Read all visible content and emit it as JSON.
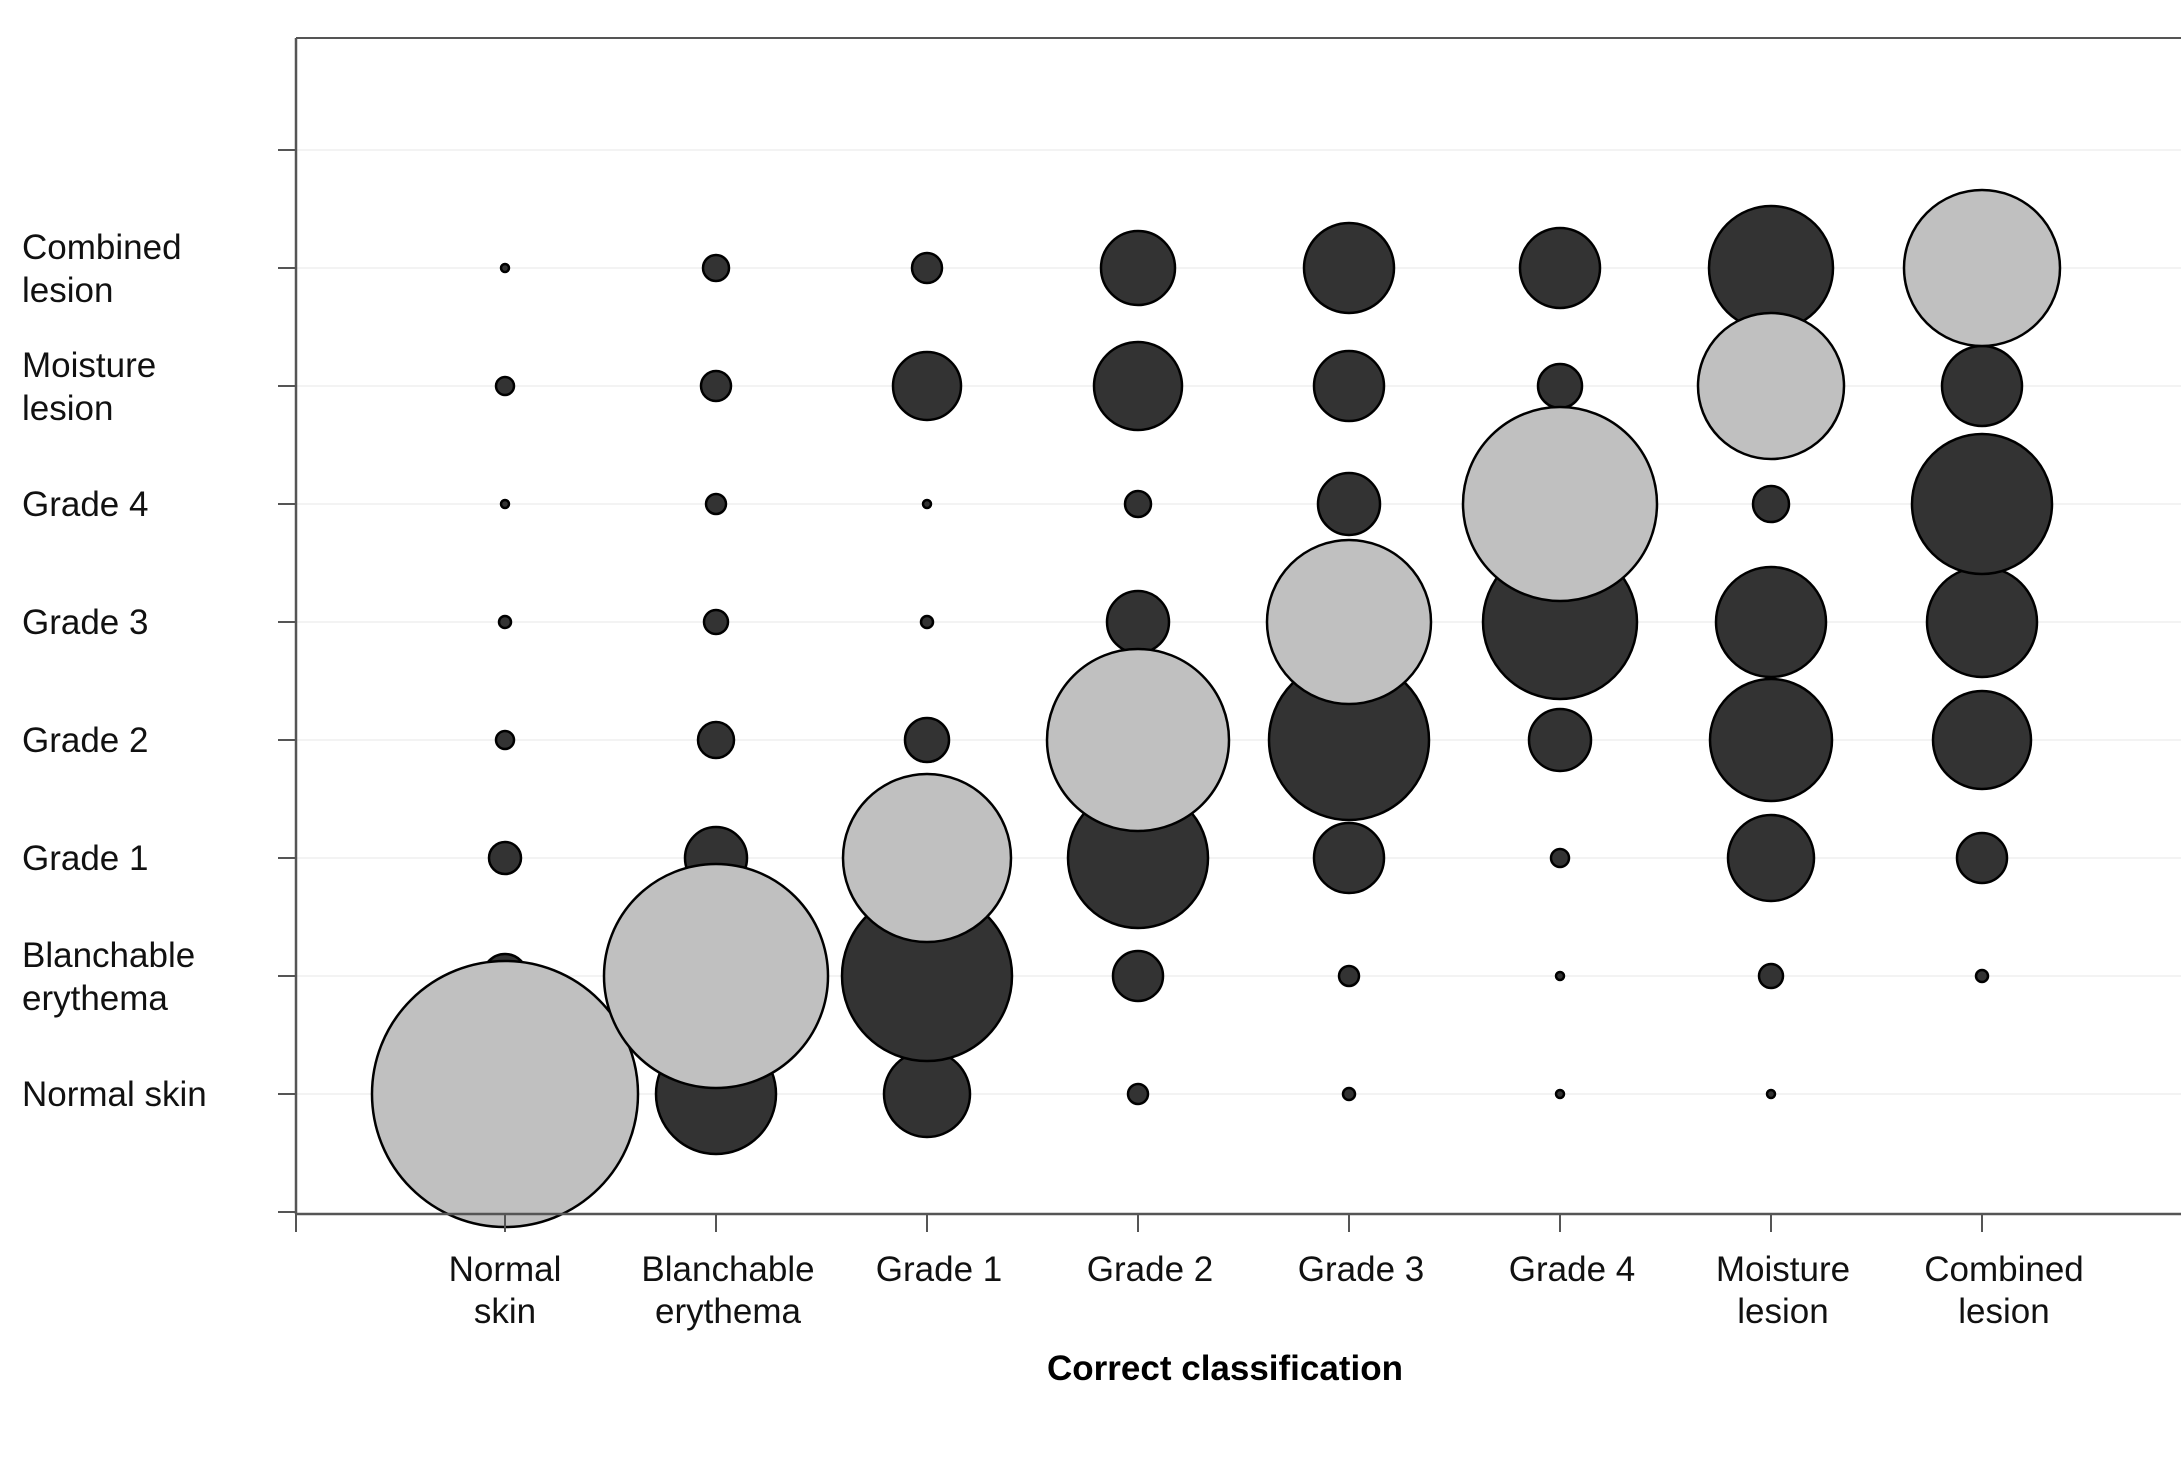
{
  "chart_data": {
    "type": "scatter",
    "subtype": "bubble",
    "xlabel": "Correct classification",
    "ylabel": "",
    "categories": [
      [
        "Normal",
        "skin"
      ],
      [
        "Blanchable",
        "erythema"
      ],
      [
        "Grade 1"
      ],
      [
        "Grade 2"
      ],
      [
        "Grade 3"
      ],
      [
        "Grade 4"
      ],
      [
        "Moisture",
        "lesion"
      ],
      [
        "Combined",
        "lesion"
      ]
    ],
    "y_categories": [
      [
        "Normal skin"
      ],
      [
        "Blanchable",
        "erythema"
      ],
      [
        "Grade 1"
      ],
      [
        "Grade 2"
      ],
      [
        "Grade 3"
      ],
      [
        "Grade 4"
      ],
      [
        "Moisture",
        "lesion"
      ],
      [
        "Combined",
        "lesion"
      ]
    ],
    "grid": true,
    "legend": "none",
    "colors": {
      "correct": "#c0c0c0",
      "incorrect": "#333333",
      "stroke": "#000000"
    },
    "bubbles": [
      {
        "x": 0,
        "y": 0,
        "r": 133,
        "correct": true
      },
      {
        "x": 0,
        "y": 1,
        "r": 22
      },
      {
        "x": 0,
        "y": 2,
        "r": 16
      },
      {
        "x": 0,
        "y": 3,
        "r": 9
      },
      {
        "x": 0,
        "y": 4,
        "r": 6
      },
      {
        "x": 0,
        "y": 5,
        "r": 4
      },
      {
        "x": 0,
        "y": 6,
        "r": 9
      },
      {
        "x": 0,
        "y": 7,
        "r": 4
      },
      {
        "x": 1,
        "y": 0,
        "r": 60
      },
      {
        "x": 1,
        "y": 1,
        "r": 112,
        "correct": true
      },
      {
        "x": 1,
        "y": 2,
        "r": 31
      },
      {
        "x": 1,
        "y": 3,
        "r": 18
      },
      {
        "x": 1,
        "y": 4,
        "r": 12
      },
      {
        "x": 1,
        "y": 5,
        "r": 10
      },
      {
        "x": 1,
        "y": 6,
        "r": 15
      },
      {
        "x": 1,
        "y": 7,
        "r": 13
      },
      {
        "x": 2,
        "y": 0,
        "r": 43
      },
      {
        "x": 2,
        "y": 1,
        "r": 85
      },
      {
        "x": 2,
        "y": 2,
        "r": 84,
        "correct": true
      },
      {
        "x": 2,
        "y": 3,
        "r": 22
      },
      {
        "x": 2,
        "y": 4,
        "r": 6
      },
      {
        "x": 2,
        "y": 5,
        "r": 4
      },
      {
        "x": 2,
        "y": 6,
        "r": 34
      },
      {
        "x": 2,
        "y": 7,
        "r": 15
      },
      {
        "x": 3,
        "y": 0,
        "r": 10
      },
      {
        "x": 3,
        "y": 1,
        "r": 25
      },
      {
        "x": 3,
        "y": 2,
        "r": 70
      },
      {
        "x": 3,
        "y": 3,
        "r": 91,
        "correct": true
      },
      {
        "x": 3,
        "y": 4,
        "r": 31
      },
      {
        "x": 3,
        "y": 5,
        "r": 13
      },
      {
        "x": 3,
        "y": 6,
        "r": 44
      },
      {
        "x": 3,
        "y": 7,
        "r": 37
      },
      {
        "x": 4,
        "y": 0,
        "r": 6
      },
      {
        "x": 4,
        "y": 1,
        "r": 10
      },
      {
        "x": 4,
        "y": 2,
        "r": 35
      },
      {
        "x": 4,
        "y": 3,
        "r": 80
      },
      {
        "x": 4,
        "y": 4,
        "r": 82,
        "correct": true
      },
      {
        "x": 4,
        "y": 5,
        "r": 31
      },
      {
        "x": 4,
        "y": 6,
        "r": 35
      },
      {
        "x": 4,
        "y": 7,
        "r": 45
      },
      {
        "x": 5,
        "y": 0,
        "r": 4
      },
      {
        "x": 5,
        "y": 1,
        "r": 4
      },
      {
        "x": 5,
        "y": 2,
        "r": 9
      },
      {
        "x": 5,
        "y": 3,
        "r": 31
      },
      {
        "x": 5,
        "y": 4,
        "r": 77
      },
      {
        "x": 5,
        "y": 5,
        "r": 97,
        "correct": true
      },
      {
        "x": 5,
        "y": 6,
        "r": 22
      },
      {
        "x": 5,
        "y": 7,
        "r": 40
      },
      {
        "x": 6,
        "y": 0,
        "r": 4
      },
      {
        "x": 6,
        "y": 1,
        "r": 12
      },
      {
        "x": 6,
        "y": 2,
        "r": 43
      },
      {
        "x": 6,
        "y": 3,
        "r": 61
      },
      {
        "x": 6,
        "y": 4,
        "r": 55
      },
      {
        "x": 6,
        "y": 5,
        "r": 18
      },
      {
        "x": 6,
        "y": 6,
        "r": 73,
        "correct": true
      },
      {
        "x": 6,
        "y": 7,
        "r": 62
      },
      {
        "x": 7,
        "y": 1,
        "r": 6
      },
      {
        "x": 7,
        "y": 2,
        "r": 25
      },
      {
        "x": 7,
        "y": 3,
        "r": 49
      },
      {
        "x": 7,
        "y": 4,
        "r": 55
      },
      {
        "x": 7,
        "y": 5,
        "r": 70
      },
      {
        "x": 7,
        "y": 6,
        "r": 40
      },
      {
        "x": 7,
        "y": 7,
        "r": 78,
        "correct": true
      }
    ]
  }
}
